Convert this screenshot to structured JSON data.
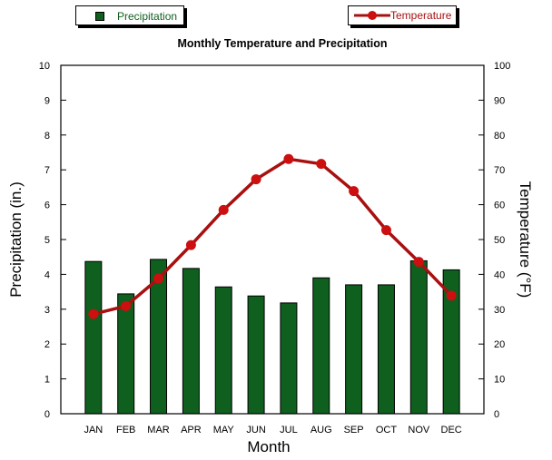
{
  "chart_data": {
    "type": "bar+line",
    "title": "Monthly Temperature and Precipitation",
    "xlabel": "Month",
    "ylabel_left": "Precipitation (in.)",
    "ylabel_right": "Temperature (°F)",
    "categories": [
      "JAN",
      "FEB",
      "MAR",
      "APR",
      "MAY",
      "JUN",
      "JUL",
      "AUG",
      "SEP",
      "OCT",
      "NOV",
      "DEC"
    ],
    "ylim_left": [
      0,
      10
    ],
    "ylim_right": [
      0,
      100
    ],
    "yticks_left": [
      "0",
      "1",
      "2",
      "3",
      "4",
      "5",
      "6",
      "7",
      "8",
      "9",
      "10"
    ],
    "yticks_right": [
      "0",
      "10",
      "20",
      "30",
      "40",
      "50",
      "60",
      "70",
      "80",
      "90",
      "100"
    ],
    "grid": false,
    "series": [
      {
        "name": "Precipitation",
        "type": "bar",
        "axis": "left",
        "color": "#0f5f1f",
        "values": [
          4.37,
          3.44,
          4.43,
          4.17,
          3.64,
          3.38,
          3.18,
          3.9,
          3.7,
          3.7,
          4.39,
          4.13
        ]
      },
      {
        "name": "Temperature",
        "type": "line",
        "axis": "right",
        "color": "#a81010",
        "marker_color": "#cc0f0f",
        "values": [
          28.6,
          30.9,
          38.8,
          48.4,
          58.5,
          67.3,
          73.1,
          71.7,
          63.9,
          52.7,
          43.6,
          33.9
        ]
      }
    ],
    "legend": [
      {
        "label": "Precipitation",
        "position": "top-left",
        "color": "#0f5f1f"
      },
      {
        "label": "Temperature",
        "position": "top-right",
        "color": "#a81010"
      }
    ]
  }
}
